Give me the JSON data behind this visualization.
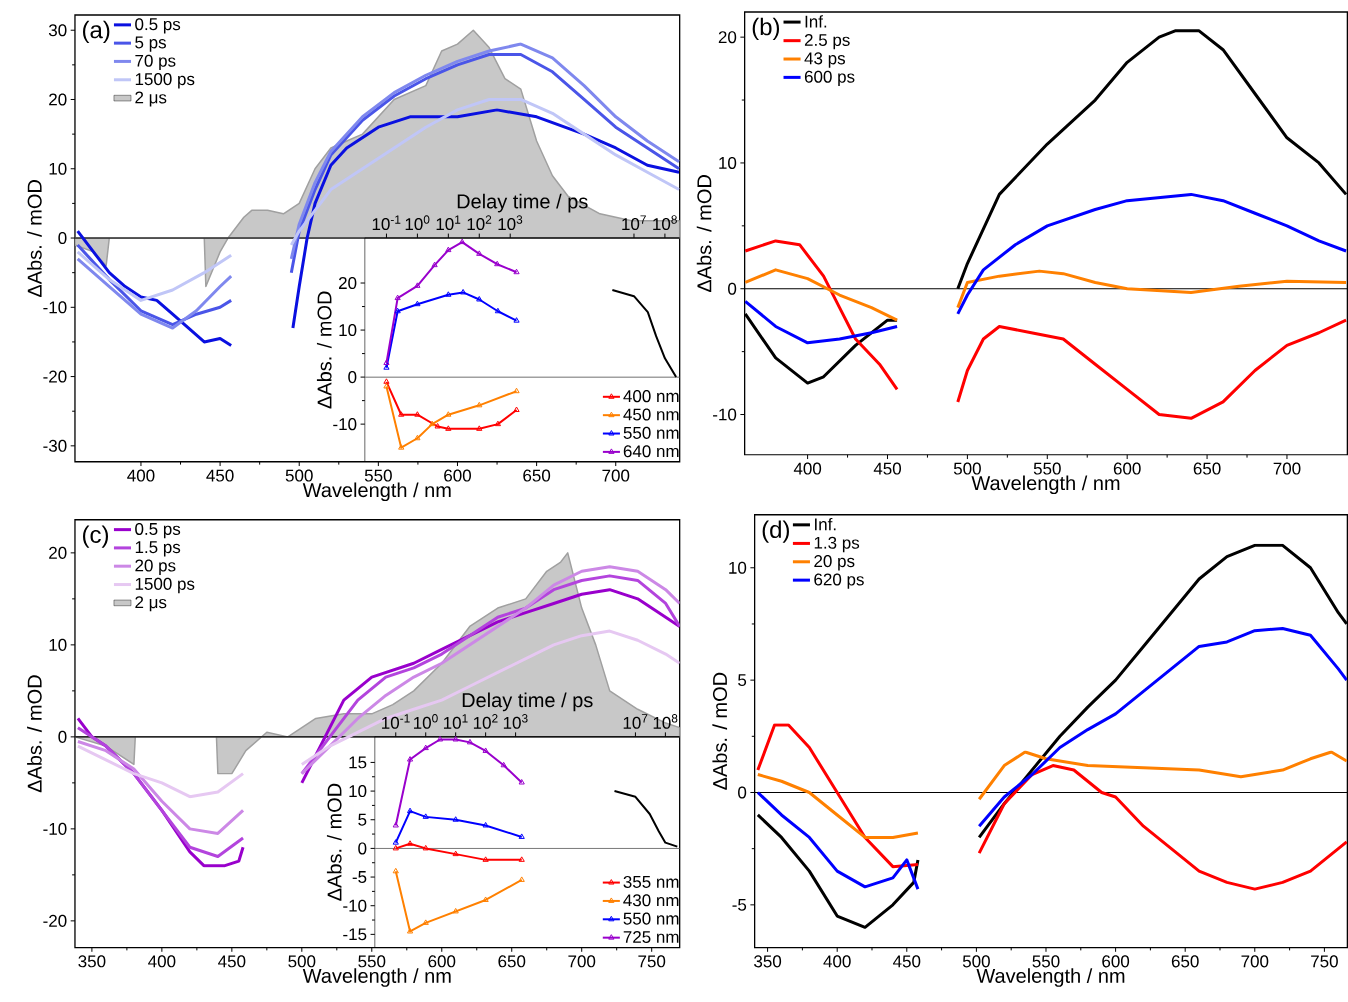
{
  "chart_data": [
    {
      "type": "line",
      "title": "(a)",
      "xlabel": "Wavelength / nm",
      "ylabel": "ΔAbs. / mOD",
      "xlim": [
        358.3,
        740.4
      ],
      "ylim": [
        -32.3,
        32.2
      ],
      "xticks": [
        400,
        450,
        500,
        550,
        600,
        650,
        700
      ],
      "yticks": [
        -30,
        -20,
        -10,
        0,
        10,
        20,
        30
      ],
      "legend": "top left",
      "ref_lines": [
        {
          "axis": "y",
          "value": 0,
          "color": "#000000"
        }
      ],
      "series": [
        {
          "name": "0.5 ps",
          "color": "#0a10e0",
          "x": [
            360,
            370,
            380,
            390,
            400,
            410,
            420,
            430,
            440,
            450,
            457,
            476,
            496,
            500,
            505,
            510,
            520,
            530,
            550,
            570,
            600,
            625,
            650,
            680,
            700,
            720,
            740
          ],
          "values": [
            1,
            -2,
            -5,
            -7,
            -8.5,
            -9,
            -11,
            -13,
            -15,
            -14.5,
            -15.5,
            null,
            -13,
            -7,
            0,
            5,
            10.5,
            13,
            16,
            17.5,
            17.5,
            18.5,
            17.5,
            15,
            13,
            10.5,
            9.5
          ]
        },
        {
          "name": "5 ps",
          "color": "#4a55e8",
          "x": [
            360,
            380,
            400,
            420,
            435,
            450,
            457,
            476,
            495,
            500,
            510,
            520,
            540,
            560,
            580,
            600,
            620,
            640,
            660,
            680,
            700,
            720,
            740
          ],
          "values": [
            -1,
            -6,
            -10.5,
            -12.5,
            -11,
            -10,
            -9,
            null,
            -5,
            1,
            7,
            12,
            17,
            20.5,
            23,
            25,
            26.5,
            26.5,
            24,
            20,
            16,
            13,
            10
          ]
        },
        {
          "name": "70 ps",
          "color": "#7f88ee",
          "x": [
            360,
            380,
            400,
            420,
            435,
            450,
            457,
            476,
            495,
            500,
            510,
            520,
            540,
            560,
            580,
            600,
            620,
            640,
            660,
            680,
            700,
            720,
            740
          ],
          "values": [
            -3,
            -7,
            -11,
            -13,
            -10.5,
            -7,
            -5.5,
            null,
            -3,
            2,
            8,
            12.5,
            17.5,
            21,
            23.5,
            25.5,
            27,
            28,
            26,
            22,
            17.5,
            14,
            11
          ]
        },
        {
          "name": "1500 ps",
          "color": "#c0c6f7",
          "x": [
            360,
            380,
            400,
            420,
            440,
            457,
            476,
            495,
            500,
            510,
            520,
            540,
            560,
            580,
            600,
            620,
            640,
            660,
            680,
            700,
            720,
            740
          ],
          "values": [
            -2,
            -6,
            -9,
            -7.5,
            -5,
            -2.5,
            null,
            -1,
            1,
            4,
            7,
            10,
            13,
            16,
            18.5,
            20,
            20,
            18,
            15,
            12,
            9.5,
            7
          ]
        },
        {
          "name": "2 μs",
          "type": "area",
          "color": "#c8c8c8",
          "x": [
            358.3,
            370,
            378,
            380,
            440,
            441,
            450,
            455,
            465,
            470,
            480,
            490,
            500,
            510,
            520,
            530,
            540,
            560,
            580,
            590,
            600,
            610,
            620,
            630,
            640,
            650,
            660,
            670,
            690,
            710,
            740.4
          ],
          "values": [
            -1,
            -2,
            -4,
            0,
            0,
            -7,
            -2,
            0,
            3,
            4,
            4,
            3.5,
            5,
            10,
            13,
            14,
            15,
            20,
            22,
            27,
            28,
            30,
            27.5,
            23,
            21.5,
            14,
            9,
            6,
            3.5,
            2.5,
            2.5
          ]
        }
      ]
    },
    {
      "type": "line",
      "xlabel": "Delay time / ps",
      "ylabel": "ΔAbs. / mOD",
      "log": "x",
      "xlim": [
        0.02,
        300000000
      ],
      "ylim": [
        -18,
        29.6
      ],
      "xticks": [
        {
          "value": 0.1,
          "label": "10$^{-1}$"
        },
        {
          "value": 1,
          "label": "10$^{0}$"
        },
        {
          "value": 10,
          "label": "10$^{1}$"
        },
        {
          "value": 100,
          "label": "10$^{2}$"
        },
        {
          "value": 1000,
          "label": "10$^{3}$"
        },
        {
          "value": 10000000,
          "label": "10$^{7}$"
        },
        {
          "value": 100000000,
          "label": "10$^{8}$"
        }
      ],
      "yticks": [
        -10,
        0,
        10,
        20
      ],
      "legend": "bottom right",
      "marker": "triangle",
      "ref_lines": [
        {
          "axis": "y",
          "value": 0,
          "color": "#808080"
        }
      ],
      "series": [
        {
          "name": "400 nm",
          "color": "#ff0000",
          "x": [
            0.1,
            0.3,
            1,
            4.5,
            10,
            100,
            400,
            1600
          ],
          "values": [
            -1,
            -8,
            -8,
            -10.5,
            -11,
            -11,
            -10,
            -7
          ]
        },
        {
          "name": "450 nm",
          "color": "#ff8000",
          "x": [
            0.1,
            0.3,
            1,
            3,
            10,
            100,
            1600
          ],
          "values": [
            -2,
            -15,
            -13,
            -10,
            -8,
            -6,
            -3
          ]
        },
        {
          "name": "550 nm",
          "color": "#0000ff",
          "x": [
            0.1,
            0.23,
            1,
            10,
            30,
            100,
            400,
            1600
          ],
          "values": [
            2,
            14,
            15.5,
            17.5,
            18,
            16.5,
            14,
            12
          ]
        },
        {
          "name": "640 nm",
          "color": "#9900cc",
          "x": [
            0.1,
            0.23,
            1,
            3.6,
            10,
            28,
            100,
            380,
            1600
          ],
          "values": [
            3,
            16.8,
            19.4,
            23.8,
            27,
            28.7,
            26.2,
            24,
            22.3
          ]
        },
        {
          "color": "#000000",
          "marker": "none",
          "x": [
            2000000,
            10000000,
            28000000,
            52000000,
            100000000,
            230000000
          ],
          "values": [
            18.5,
            17.2,
            13.8,
            8.7,
            4,
            0
          ]
        }
      ]
    },
    {
      "type": "line",
      "title": "(b)",
      "xlabel": "Wavelength / nm",
      "ylabel": "ΔAbs. / mOD",
      "xlim": [
        360.6,
        737.8
      ],
      "ylim": [
        -13.2,
        22.0
      ],
      "xticks": [
        400,
        450,
        500,
        550,
        600,
        650,
        700
      ],
      "yticks": [
        -10,
        0,
        10,
        20
      ],
      "legend": "top left",
      "ref_lines": [
        {
          "axis": "y",
          "value": 0,
          "color": "#000000"
        }
      ],
      "series": [
        {
          "name": "Inf.",
          "color": "#000000",
          "x": [
            361,
            380,
            400,
            410,
            430,
            450,
            456,
            475,
            494,
            500,
            520,
            550,
            580,
            600,
            620,
            630,
            645,
            660,
            680,
            700,
            720,
            737
          ],
          "values": [
            -2,
            -5.5,
            -7.5,
            -7,
            -4.5,
            -2.5,
            -2.5,
            null,
            0,
            2,
            7.5,
            11.5,
            15,
            18,
            20,
            20.5,
            20.5,
            19,
            15.5,
            12,
            10,
            7.5
          ]
        },
        {
          "name": "2.5 ps",
          "color": "#ff0000",
          "x": [
            361,
            380,
            395,
            410,
            420,
            430,
            445,
            456,
            475,
            494,
            500,
            510,
            520,
            540,
            560,
            580,
            600,
            620,
            640,
            660,
            680,
            700,
            720,
            737
          ],
          "values": [
            3,
            3.8,
            3.5,
            1,
            -1.5,
            -4,
            -6,
            -8,
            null,
            -9,
            -6.5,
            -4,
            -3,
            -3.5,
            -4,
            -6,
            -8,
            -10,
            -10.3,
            -9,
            -6.5,
            -4.5,
            -3.5,
            -2.5
          ]
        },
        {
          "name": "43 ps",
          "color": "#ff8000",
          "x": [
            361,
            380,
            400,
            420,
            440,
            456,
            475,
            494,
            500,
            520,
            545,
            560,
            580,
            600,
            640,
            670,
            700,
            737
          ],
          "values": [
            0.5,
            1.5,
            0.8,
            -0.5,
            -1.5,
            -2.5,
            null,
            -1.5,
            0.5,
            1,
            1.4,
            1.2,
            0.5,
            0,
            -0.3,
            0.2,
            0.6,
            0.5
          ]
        },
        {
          "name": "600 ps",
          "color": "#0000ff",
          "x": [
            361,
            380,
            400,
            420,
            440,
            456,
            475,
            494,
            500,
            510,
            530,
            550,
            580,
            600,
            640,
            660,
            680,
            700,
            720,
            737
          ],
          "values": [
            -1,
            -3,
            -4.3,
            -4,
            -3.5,
            -3,
            null,
            -2,
            -0.5,
            1.5,
            3.5,
            5,
            6.3,
            7,
            7.5,
            7,
            6,
            5,
            3.8,
            3
          ]
        }
      ]
    },
    {
      "type": "line",
      "title": "(c)",
      "xlabel": "Wavelength / nm",
      "ylabel": "ΔAbs. / mOD",
      "xlim": [
        337.9,
        770
      ],
      "ylim": [
        -22.9,
        23.6
      ],
      "xticks": [
        350,
        400,
        450,
        500,
        550,
        600,
        650,
        700,
        750
      ],
      "yticks": [
        -20,
        -10,
        0,
        10,
        20
      ],
      "legend": "top left",
      "ref_lines": [
        {
          "axis": "y",
          "value": 0,
          "color": "#000000"
        }
      ],
      "series": [
        {
          "name": "0.5 ps",
          "color": "#9900cc",
          "x": [
            340,
            350,
            360,
            380,
            400,
            420,
            430,
            445,
            455,
            458,
            480,
            500,
            510,
            520,
            530,
            550,
            580,
            600,
            620,
            640,
            660,
            680,
            700,
            720,
            740,
            760,
            770
          ],
          "values": [
            2,
            0,
            -1,
            -4,
            -8,
            -12.5,
            -14,
            -14,
            -13.5,
            -12,
            null,
            -5,
            -2,
            1,
            4,
            6.5,
            8,
            9.5,
            11,
            12.5,
            13.5,
            14.5,
            15.5,
            16,
            15,
            13,
            12
          ]
        },
        {
          "name": "1.5 ps",
          "color": "#b344dd",
          "x": [
            340,
            360,
            380,
            400,
            420,
            440,
            458,
            480,
            500,
            520,
            540,
            560,
            580,
            600,
            620,
            640,
            660,
            680,
            700,
            720,
            740,
            760,
            770
          ],
          "values": [
            1,
            -1,
            -4,
            -8,
            -12,
            -13,
            -11,
            null,
            -4,
            0,
            4,
            6.5,
            7.5,
            9,
            11,
            13,
            14,
            16,
            17,
            17.5,
            17,
            14.5,
            12
          ]
        },
        {
          "name": "20 ps",
          "color": "#cc88e6",
          "x": [
            340,
            360,
            380,
            400,
            420,
            440,
            458,
            480,
            500,
            520,
            540,
            560,
            580,
            600,
            620,
            640,
            660,
            680,
            700,
            720,
            740,
            760,
            770
          ],
          "values": [
            -0.5,
            -1.5,
            -3.5,
            -7,
            -10,
            -10.5,
            -8,
            null,
            -4,
            -1,
            2,
            4.5,
            6.5,
            8,
            10,
            12,
            14,
            16.5,
            18,
            18.5,
            18,
            16,
            14.5
          ]
        },
        {
          "name": "1500 ps",
          "color": "#e6c8f2",
          "x": [
            340,
            360,
            380,
            400,
            420,
            440,
            458,
            480,
            500,
            520,
            540,
            560,
            580,
            600,
            620,
            640,
            660,
            680,
            700,
            720,
            740,
            760,
            770
          ],
          "values": [
            -1,
            -2.5,
            -4,
            -5,
            -6.5,
            -6,
            -4,
            null,
            -3,
            -1,
            0.5,
            2,
            3,
            4,
            5.5,
            7,
            8.5,
            10,
            11,
            11.5,
            10.5,
            9,
            8
          ]
        },
        {
          "name": "2 μs",
          "type": "area",
          "color": "#c8c8c8",
          "x": [
            337.9,
            360,
            380,
            381,
            439,
            440,
            450,
            460,
            475,
            490,
            500,
            510,
            530,
            550,
            565,
            580,
            600,
            620,
            640,
            660,
            675,
            685,
            690,
            700,
            710,
            720,
            730,
            740,
            760,
            770
          ],
          "values": [
            0,
            -1,
            -3,
            0,
            0,
            -4,
            -4,
            -1.5,
            0.5,
            0,
            1,
            2,
            2.5,
            2.5,
            3.5,
            5,
            8,
            12,
            14,
            15,
            18,
            19,
            20,
            14,
            10,
            5,
            4,
            3,
            1.5,
            1
          ]
        }
      ]
    },
    {
      "type": "line",
      "xlabel": "Delay time / ps",
      "ylabel": "ΔAbs. / mOD",
      "log": "x",
      "xlim": [
        0.02,
        300000000
      ],
      "ylim": [
        -17.3,
        19.5
      ],
      "xticks": [
        {
          "value": 0.1,
          "label": "10$^{-1}$"
        },
        {
          "value": 1,
          "label": "10$^{0}$"
        },
        {
          "value": 10,
          "label": "10$^{1}$"
        },
        {
          "value": 100,
          "label": "10$^{2}$"
        },
        {
          "value": 1000,
          "label": "10$^{3}$"
        },
        {
          "value": 10000000,
          "label": "10$^{7}$"
        },
        {
          "value": 100000000,
          "label": "10$^{8}$"
        }
      ],
      "yticks": [
        -15,
        -10,
        -5,
        0,
        5,
        10,
        15
      ],
      "legend": "bottom right",
      "marker": "triangle",
      "ref_lines": [
        {
          "axis": "y",
          "value": 0,
          "color": "#808080"
        }
      ],
      "series": [
        {
          "name": "355 nm",
          "color": "#ff0000",
          "x": [
            0.1,
            0.3,
            1,
            10,
            100,
            1600
          ],
          "values": [
            0,
            0.8,
            0,
            -1,
            -2,
            -2
          ]
        },
        {
          "name": "430 nm",
          "color": "#ff8000",
          "x": [
            0.1,
            0.3,
            1,
            10,
            100,
            1600
          ],
          "values": [
            -4,
            -14.5,
            -13,
            -11,
            -9,
            -5.5
          ]
        },
        {
          "name": "550 nm",
          "color": "#0000ff",
          "x": [
            0.1,
            0.3,
            1,
            10,
            100,
            1600
          ],
          "values": [
            1,
            6.5,
            5.5,
            5,
            4,
            2
          ]
        },
        {
          "name": "725 nm",
          "color": "#9900cc",
          "x": [
            0.1,
            0.3,
            1,
            3,
            10,
            30,
            100,
            400,
            1600
          ],
          "values": [
            4,
            15.5,
            17.5,
            19,
            19,
            18.5,
            17,
            14.5,
            11.5
          ]
        },
        {
          "color": "#000000",
          "marker": "none",
          "x": [
            2000000,
            10000000,
            30000000,
            60000000,
            100000000,
            250000000
          ],
          "values": [
            10,
            9,
            6,
            3,
            1,
            0.3
          ]
        }
      ]
    },
    {
      "type": "line",
      "title": "(d)",
      "xlabel": "Wavelength / nm",
      "ylabel": "ΔAbs. / mOD",
      "xlim": [
        340.7,
        766.5
      ],
      "ylim": [
        -6.9,
        12.36
      ],
      "xticks": [
        350,
        400,
        450,
        500,
        550,
        600,
        650,
        700,
        750
      ],
      "yticks": [
        -5,
        0,
        5,
        10
      ],
      "legend": "top left",
      "ref_lines": [
        {
          "axis": "y",
          "value": 0,
          "color": "#000000"
        }
      ],
      "series": [
        {
          "name": "Inf.",
          "color": "#000000",
          "x": [
            343,
            360,
            380,
            400,
            420,
            440,
            455,
            458,
            480,
            502,
            520,
            540,
            560,
            580,
            600,
            620,
            640,
            660,
            680,
            700,
            720,
            740,
            760,
            766
          ],
          "values": [
            -1,
            -2,
            -3.5,
            -5.5,
            -6,
            -5,
            -4,
            -3,
            null,
            -2,
            -0.5,
            1,
            2.5,
            3.8,
            5,
            6.5,
            8,
            9.5,
            10.5,
            11,
            11,
            10,
            8,
            7.5
          ]
        },
        {
          "name": "1.3 ps",
          "color": "#ff0000",
          "x": [
            343,
            355,
            365,
            380,
            400,
            420,
            440,
            458,
            480,
            502,
            520,
            540,
            555,
            570,
            590,
            600,
            620,
            640,
            660,
            680,
            700,
            720,
            740,
            760,
            766
          ],
          "values": [
            1,
            3,
            3,
            2,
            0,
            -2,
            -3.3,
            -3.2,
            null,
            -2.7,
            -0.5,
            0.8,
            1.2,
            1,
            0,
            -0.2,
            -1.5,
            -2.5,
            -3.5,
            -4,
            -4.3,
            -4,
            -3.5,
            -2.5,
            -2.2
          ]
        },
        {
          "name": "20 ps",
          "color": "#ff8000",
          "x": [
            343,
            360,
            380,
            400,
            420,
            440,
            458,
            480,
            502,
            520,
            535,
            550,
            580,
            620,
            660,
            690,
            700,
            720,
            740,
            755,
            766
          ],
          "values": [
            0.8,
            0.5,
            0,
            -1,
            -2,
            -2,
            -1.8,
            null,
            -0.3,
            1.2,
            1.8,
            1.5,
            1.2,
            1.1,
            1,
            0.7,
            0.8,
            1,
            1.5,
            1.8,
            1.4
          ]
        },
        {
          "name": "620 ps",
          "color": "#0000ff",
          "x": [
            343,
            360,
            380,
            400,
            420,
            440,
            450,
            458,
            480,
            502,
            520,
            540,
            560,
            580,
            600,
            620,
            640,
            660,
            680,
            700,
            720,
            740,
            760,
            766
          ],
          "values": [
            0,
            -1,
            -2,
            -3.5,
            -4.2,
            -3.8,
            -3,
            -4.3,
            null,
            -1.5,
            -0.2,
            0.8,
            2,
            2.8,
            3.5,
            4.5,
            5.5,
            6.5,
            6.7,
            7.2,
            7.3,
            7,
            5.5,
            5
          ]
        }
      ]
    }
  ]
}
